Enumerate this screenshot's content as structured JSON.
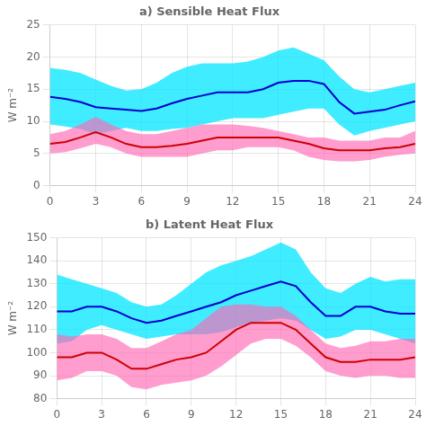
{
  "chart_data": [
    {
      "type": "line",
      "title": "a) Sensible Heat Flux",
      "ylabel": "W m⁻²",
      "x": [
        0,
        1,
        2,
        3,
        4,
        5,
        6,
        7,
        8,
        9,
        10,
        11,
        12,
        13,
        14,
        15,
        16,
        17,
        18,
        19,
        20,
        21,
        22,
        23,
        24
      ],
      "xlim": [
        0,
        24
      ],
      "xticks": [
        0,
        3,
        6,
        9,
        12,
        15,
        18,
        21,
        24
      ],
      "ylim": [
        0,
        25
      ],
      "yticks": [
        0,
        5,
        10,
        15,
        20,
        25
      ],
      "grid": true,
      "series": [
        {
          "type": "band",
          "color": "#00E5FF",
          "lower": [
            9.5,
            9.2,
            8.8,
            8.0,
            8.5,
            9.0,
            8.5,
            8.5,
            8.8,
            9.0,
            9.5,
            10.0,
            10.5,
            10.5,
            10.5,
            11.0,
            11.5,
            12.0,
            12.0,
            9.5,
            7.8,
            8.5,
            9.0,
            9.5,
            10.0
          ],
          "upper": [
            18.3,
            18.0,
            17.5,
            16.5,
            15.5,
            14.8,
            15.0,
            16.0,
            17.5,
            18.5,
            19.0,
            19.0,
            19.0,
            19.3,
            20.0,
            21.0,
            21.5,
            20.5,
            19.5,
            17.0,
            15.0,
            14.5,
            15.0,
            15.5,
            16.0
          ]
        },
        {
          "type": "band",
          "color": "#FF69B4",
          "lower": [
            5.0,
            5.2,
            5.8,
            6.5,
            6.0,
            5.0,
            4.5,
            4.5,
            4.5,
            4.5,
            5.0,
            5.5,
            5.5,
            6.0,
            6.0,
            6.0,
            5.5,
            4.5,
            4.0,
            3.8,
            3.8,
            4.0,
            4.5,
            4.8,
            5.0
          ],
          "upper": [
            8.0,
            8.5,
            9.5,
            10.7,
            9.5,
            8.5,
            8.0,
            8.0,
            8.5,
            9.0,
            9.5,
            9.5,
            9.5,
            9.3,
            9.0,
            8.5,
            8.0,
            7.5,
            7.5,
            7.0,
            7.0,
            7.0,
            7.5,
            7.5,
            8.5
          ]
        },
        {
          "type": "line",
          "color": "#0000CC",
          "values": [
            13.8,
            13.5,
            13.0,
            12.2,
            12.0,
            11.8,
            11.6,
            12.0,
            12.8,
            13.5,
            14.0,
            14.5,
            14.5,
            14.5,
            15.0,
            16.0,
            16.3,
            16.3,
            15.8,
            13.0,
            11.2,
            11.5,
            11.8,
            12.5,
            13.1
          ]
        },
        {
          "type": "line",
          "color": "#CC0000",
          "values": [
            6.5,
            6.8,
            7.5,
            8.3,
            7.5,
            6.5,
            6.0,
            6.0,
            6.2,
            6.5,
            7.0,
            7.5,
            7.5,
            7.5,
            7.5,
            7.5,
            7.0,
            6.5,
            5.8,
            5.5,
            5.5,
            5.5,
            5.8,
            6.0,
            6.5
          ]
        }
      ]
    },
    {
      "type": "line",
      "title": "b) Latent Heat Flux",
      "ylabel": "W m⁻²",
      "x": [
        0,
        1,
        2,
        3,
        4,
        5,
        6,
        7,
        8,
        9,
        10,
        11,
        12,
        13,
        14,
        15,
        16,
        17,
        18,
        19,
        20,
        21,
        22,
        23,
        24
      ],
      "xlim": [
        0,
        24
      ],
      "xticks": [
        0,
        3,
        6,
        9,
        12,
        15,
        18,
        21,
        24
      ],
      "ylim": [
        80,
        150
      ],
      "yticks": [
        80,
        90,
        100,
        110,
        120,
        130,
        140,
        150
      ],
      "grid": true,
      "series": [
        {
          "type": "band",
          "color": "#00E5FF",
          "lower": [
            104,
            105,
            110,
            112,
            110,
            108,
            106,
            107,
            108,
            108,
            108,
            109,
            111,
            113,
            114,
            115,
            114,
            110,
            106,
            107,
            110,
            110,
            108,
            106,
            104
          ],
          "upper": [
            134,
            132,
            130,
            128,
            126,
            122,
            120,
            121,
            125,
            130,
            135,
            138,
            140,
            142,
            145,
            148,
            145,
            135,
            128,
            126,
            130,
            133,
            131,
            132,
            132
          ]
        },
        {
          "type": "band",
          "color": "#FF69B4",
          "lower": [
            88,
            89,
            92,
            92,
            90,
            85,
            84,
            86,
            87,
            88,
            90,
            94,
            99,
            104,
            106,
            106,
            103,
            98,
            92,
            90,
            89,
            90,
            90,
            89,
            89
          ],
          "upper": [
            108,
            107,
            108,
            108,
            106,
            102,
            102,
            105,
            108,
            110,
            115,
            120,
            121,
            121,
            120,
            120,
            116,
            110,
            104,
            102,
            103,
            105,
            105,
            106,
            106
          ]
        },
        {
          "type": "line",
          "color": "#0000CC",
          "values": [
            118,
            118,
            120,
            120,
            118,
            115,
            113,
            114,
            116,
            118,
            120,
            122,
            125,
            127,
            129,
            131,
            129,
            122,
            116,
            116,
            120,
            120,
            118,
            117,
            117
          ]
        },
        {
          "type": "line",
          "color": "#CC0000",
          "values": [
            98,
            98,
            100,
            100,
            97,
            93,
            93,
            95,
            97,
            98,
            100,
            105,
            110,
            113,
            113,
            113,
            110,
            104,
            98,
            96,
            96,
            97,
            97,
            97,
            98
          ]
        }
      ]
    }
  ]
}
